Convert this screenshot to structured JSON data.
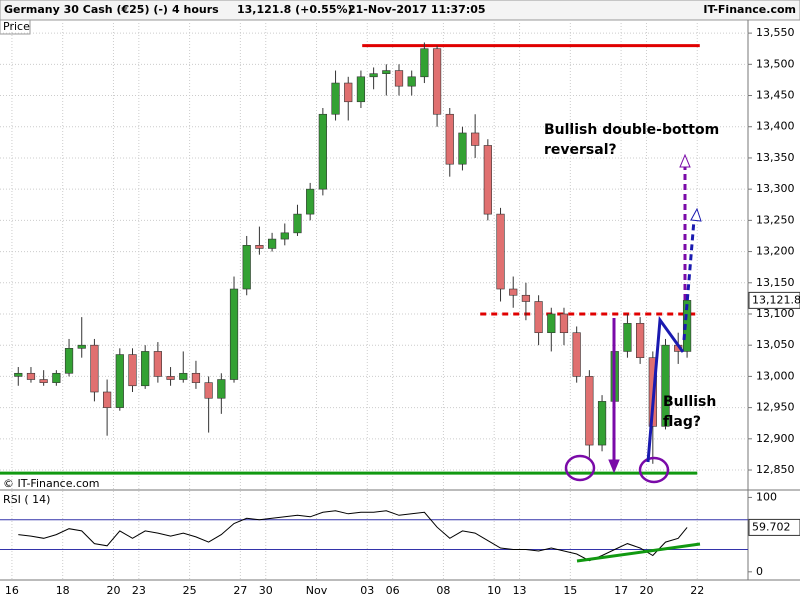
{
  "header": {
    "instrument": "Germany 30 Cash (€25) (-)",
    "timeframe": "4 hours",
    "quote": "13,121.8 (+0.55%)",
    "datetime": "21-Nov-2017 11:37:05",
    "brand": "IT-Finance.com"
  },
  "chart_data": {
    "type": "candlestick",
    "panel_label": "Price",
    "watermark": "© IT-Finance.com",
    "up_color": "#33a133",
    "down_color": "#e07070",
    "x": [
      0.25,
      0.75,
      1.25,
      1.75,
      2.25,
      2.75,
      3.25,
      3.75,
      4.25,
      4.75,
      5.25,
      5.75,
      6.25,
      6.75,
      7.25,
      7.75,
      8.25,
      8.75,
      9.25,
      9.75,
      10.25,
      10.75,
      11.25,
      11.75,
      12.25,
      12.75,
      13.25,
      13.75,
      14.25,
      14.75,
      15.25,
      15.75,
      16.25,
      16.75,
      17.25,
      17.75,
      18.25,
      18.75,
      19.25,
      19.75,
      20.25,
      20.75,
      21.25,
      21.75,
      22.25,
      22.75,
      23.25,
      23.75,
      24.25,
      24.75,
      25.25,
      25.75,
      26.25,
      26.6
    ],
    "open": [
      13000,
      13005,
      12995,
      12990,
      13005,
      13045,
      13050,
      12975,
      12950,
      13035,
      12985,
      13040,
      13000,
      12995,
      13005,
      12990,
      12965,
      12995,
      13140,
      13210,
      13205,
      13220,
      13230,
      13260,
      13300,
      13420,
      13470,
      13440,
      13480,
      13485,
      13490,
      13465,
      13480,
      13525,
      13420,
      13340,
      13390,
      13370,
      13260,
      13140,
      13130,
      13120,
      13070,
      13100,
      13070,
      13000,
      12890,
      12960,
      13040,
      13085,
      13030,
      12920,
      13050,
      13040
    ],
    "high": [
      13015,
      13015,
      13010,
      13010,
      13060,
      13095,
      13060,
      12995,
      13045,
      13045,
      13050,
      13055,
      13015,
      13040,
      13025,
      13000,
      13005,
      13160,
      13225,
      13240,
      13230,
      13245,
      13275,
      13310,
      13430,
      13490,
      13480,
      13490,
      13495,
      13500,
      13500,
      13490,
      13535,
      13530,
      13430,
      13400,
      13420,
      13380,
      13270,
      13160,
      13150,
      13130,
      13110,
      13110,
      13080,
      13010,
      12970,
      13050,
      13100,
      13095,
      13040,
      13060,
      13070,
      13130
    ],
    "low": [
      12985,
      12990,
      12985,
      12985,
      13000,
      13030,
      12960,
      12905,
      12945,
      12975,
      12980,
      12990,
      12985,
      12990,
      12980,
      12910,
      12940,
      12990,
      13130,
      13195,
      13200,
      13210,
      13225,
      13250,
      13290,
      13410,
      13410,
      13430,
      13460,
      13450,
      13450,
      13450,
      13470,
      13400,
      13320,
      13330,
      13350,
      13250,
      13120,
      13110,
      13090,
      13050,
      13040,
      13050,
      12990,
      12870,
      12880,
      12950,
      13030,
      13020,
      12860,
      12915,
      13020,
      13030
    ],
    "close": [
      13005,
      12995,
      12990,
      13005,
      13045,
      13050,
      12975,
      12950,
      13035,
      12985,
      13040,
      13000,
      12995,
      13005,
      12990,
      12965,
      12995,
      13140,
      13210,
      13205,
      13220,
      13230,
      13260,
      13300,
      13420,
      13470,
      13440,
      13480,
      13485,
      13490,
      13465,
      13480,
      13525,
      13420,
      13340,
      13390,
      13370,
      13260,
      13140,
      13130,
      13120,
      13070,
      13100,
      13070,
      13000,
      12890,
      12960,
      13040,
      13085,
      13030,
      12920,
      13050,
      13040,
      13121.8
    ],
    "last_price": {
      "value": 13121.8,
      "label": "13,121.8"
    },
    "xlim": [
      -0.47,
      29.0
    ],
    "xticks": [
      {
        "value": 0,
        "label": "16"
      },
      {
        "value": 2,
        "label": "18"
      },
      {
        "value": 4,
        "label": "20"
      },
      {
        "value": 5,
        "label": "23"
      },
      {
        "value": 7,
        "label": "25"
      },
      {
        "value": 9,
        "label": "27"
      },
      {
        "value": 10,
        "label": "30"
      },
      {
        "value": 12,
        "label": "Nov"
      },
      {
        "value": 14,
        "label": "03"
      },
      {
        "value": 15,
        "label": "06"
      },
      {
        "value": 17,
        "label": "08"
      },
      {
        "value": 19,
        "label": "10"
      },
      {
        "value": 20,
        "label": "13"
      },
      {
        "value": 22,
        "label": "15"
      },
      {
        "value": 24,
        "label": "17"
      },
      {
        "value": 25,
        "label": "20"
      },
      {
        "value": 27,
        "label": "22"
      }
    ],
    "ylim": [
      12818,
      13571
    ],
    "yticks": [
      {
        "value": 12850,
        "label": "12,850"
      },
      {
        "value": 12900,
        "label": "12,900"
      },
      {
        "value": 12950,
        "label": "12,950"
      },
      {
        "value": 13000,
        "label": "13,000"
      },
      {
        "value": 13050,
        "label": "13,050"
      },
      {
        "value": 13100,
        "label": "13,100"
      },
      {
        "value": 13150,
        "label": "13,150"
      },
      {
        "value": 13200,
        "label": "13,200"
      },
      {
        "value": 13250,
        "label": "13,250"
      },
      {
        "value": 13300,
        "label": "13,300"
      },
      {
        "value": 13350,
        "label": "13,350"
      },
      {
        "value": 13400,
        "label": "13,400"
      },
      {
        "value": 13450,
        "label": "13,450"
      },
      {
        "value": 13500,
        "label": "13,500"
      },
      {
        "value": 13550,
        "label": "13,550"
      }
    ],
    "levels": [
      {
        "value": 13530,
        "color": "#e00000",
        "dashed": false
      },
      {
        "value": 13100,
        "color": "#e00000",
        "dashed": true
      },
      {
        "value": 12845,
        "color": "#119911",
        "dashed": false
      }
    ],
    "annotations": [
      {
        "text": [
          "Bullish double-bottom",
          "reversal?"
        ],
        "color": "#7a0aa8"
      },
      {
        "text": [
          "Bullish",
          "flag?"
        ],
        "color": "#1a1ab0"
      }
    ],
    "rsi": {
      "label": "RSI ( 14)",
      "color": "#000000",
      "values": [
        50,
        48,
        45,
        50,
        58,
        55,
        38,
        35,
        55,
        45,
        55,
        52,
        48,
        52,
        47,
        40,
        50,
        65,
        72,
        70,
        72,
        74,
        76,
        74,
        80,
        82,
        78,
        80,
        80,
        82,
        76,
        78,
        80,
        60,
        45,
        55,
        52,
        42,
        32,
        30,
        30,
        28,
        32,
        28,
        24,
        15,
        22,
        30,
        38,
        32,
        22,
        40,
        45,
        59.702
      ],
      "ylim": [
        -11,
        110
      ],
      "yticks": [
        0,
        100
      ],
      "levels": [
        70,
        30
      ]
    }
  }
}
